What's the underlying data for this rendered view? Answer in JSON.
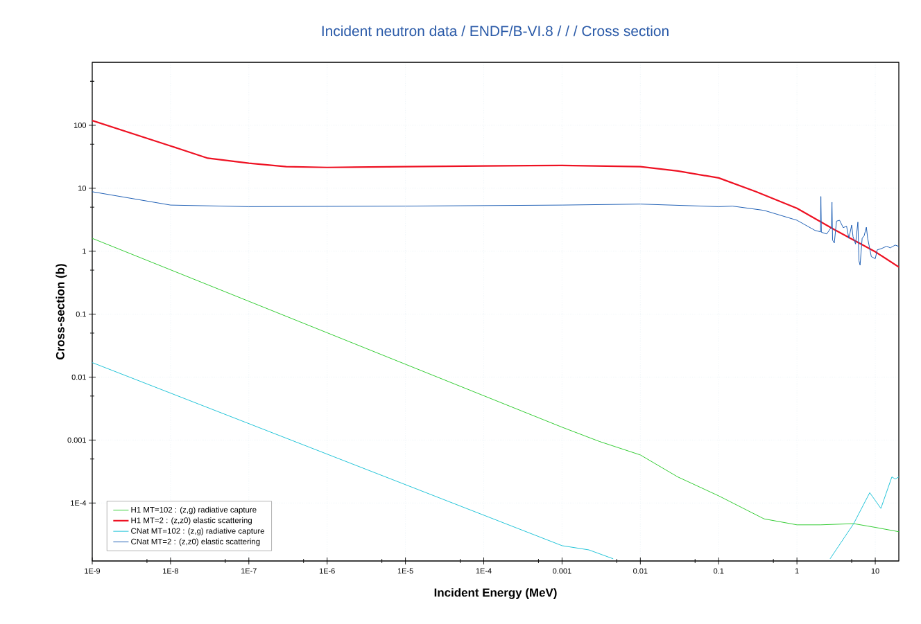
{
  "chart_data": {
    "type": "line",
    "title": "Incident neutron data / ENDF/B-VI.8 / / / Cross section",
    "xlabel": "Incident Energy (MeV)",
    "ylabel": "Cross-section (b)",
    "log": "xy",
    "grid": true,
    "legend": "bottom left",
    "line_style": "solid",
    "marker": "none",
    "xlim": [
      1e-09,
      20
    ],
    "ylim": [
      1.2e-05,
      1000
    ],
    "xticks": [
      {
        "value": 1e-09,
        "label": "1E-9"
      },
      {
        "value": 1e-08,
        "label": "1E-8"
      },
      {
        "value": 1e-07,
        "label": "1E-7"
      },
      {
        "value": 1e-06,
        "label": "1E-6"
      },
      {
        "value": 1e-05,
        "label": "1E-5"
      },
      {
        "value": 0.0001,
        "label": "1E-4"
      },
      {
        "value": 0.001,
        "label": "0.001"
      },
      {
        "value": 0.01,
        "label": "0.01"
      },
      {
        "value": 0.1,
        "label": "0.1"
      },
      {
        "value": 1,
        "label": "1"
      },
      {
        "value": 10,
        "label": "10"
      }
    ],
    "yticks": [
      {
        "value": 0.0001,
        "label": "1E-4"
      },
      {
        "value": 0.001,
        "label": "0.001"
      },
      {
        "value": 0.01,
        "label": "0.01"
      },
      {
        "value": 0.1,
        "label": "0.1"
      },
      {
        "value": 1,
        "label": "1"
      },
      {
        "value": 10,
        "label": "10"
      },
      {
        "value": 100,
        "label": "100"
      }
    ],
    "series": [
      {
        "name": "H1 MT=102 : (z,g) radiative capture",
        "color": "#33cc33",
        "x": [
          1e-09,
          0.001,
          0.003,
          0.01,
          0.03,
          0.1,
          0.38,
          1,
          2,
          5.3,
          10,
          20
        ],
        "values": [
          1.6,
          0.0016,
          0.00095,
          0.00058,
          0.00026,
          0.00013,
          5.6e-05,
          4.5e-05,
          4.5e-05,
          4.7e-05,
          4.1e-05,
          3.5e-05
        ]
      },
      {
        "name": "H1 MT=2 : (z,z0) elastic scattering",
        "color": "#ee1122",
        "x": [
          1e-09,
          1e-08,
          3e-08,
          1e-07,
          3e-07,
          1e-06,
          1e-05,
          0.0001,
          0.001,
          0.01,
          0.03,
          0.1,
          0.3,
          1,
          3,
          10,
          20
        ],
        "values": [
          119,
          47,
          30,
          25,
          22,
          21.4,
          22,
          22.6,
          23,
          22,
          18.8,
          14.6,
          8.8,
          4.8,
          2.2,
          0.98,
          0.56
        ]
      },
      {
        "name": "CNat MT=102 : (z,g) radiative capture",
        "color": "#22c4d8",
        "x": [
          1e-09,
          0.001,
          0.0022,
          0.0045,
          null,
          2.65,
          5.3,
          8.5,
          11.8,
          16.3,
          18,
          20
        ],
        "values": [
          0.017,
          2.1e-05,
          1.8e-05,
          1.3e-05,
          null,
          1.3e-05,
          4.7e-05,
          0.000146,
          8.2e-05,
          0.00026,
          0.00024,
          0.00026
        ]
      },
      {
        "name": "CNat MT=2 : (z,z0) elastic scattering",
        "color": "#1f5fb5",
        "x": [
          1e-09,
          1e-08,
          1e-07,
          1e-05,
          0.001,
          0.01,
          0.1,
          0.15,
          0.38,
          1,
          1.7,
          2.0,
          2.02,
          2.05,
          2.4,
          2.75,
          2.8,
          2.85,
          3.0,
          3.2,
          3.5,
          3.9,
          4.3,
          4.6,
          5.0,
          5.2,
          5.6,
          6.0,
          6.2,
          6.4,
          6.8,
          7.2,
          7.7,
          8.0,
          8.9,
          10,
          10.6,
          12,
          14,
          15.5,
          18,
          20
        ],
        "values": [
          8.8,
          5.4,
          5.1,
          5.2,
          5.4,
          5.6,
          5.1,
          5.2,
          4.45,
          3.1,
          2.14,
          2.03,
          7.4,
          2.0,
          1.88,
          2.4,
          6.0,
          1.5,
          1.35,
          3.0,
          3.1,
          2.36,
          2.5,
          1.6,
          2.6,
          1.7,
          1.3,
          2.9,
          0.7,
          0.6,
          1.6,
          1.75,
          2.4,
          1.6,
          0.82,
          0.76,
          1.05,
          1.1,
          1.2,
          1.13,
          1.25,
          1.19
        ]
      }
    ]
  }
}
